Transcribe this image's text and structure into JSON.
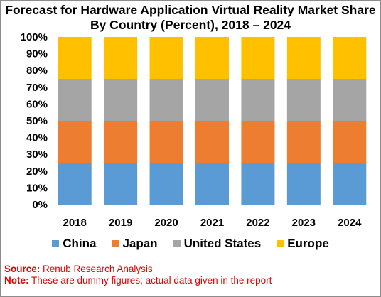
{
  "chart_data": {
    "type": "bar",
    "stacked": true,
    "title_line1": "Forecast for Hardware Application Virtual Reality Market Share",
    "title_line2": "By Country (Percent), 2018 – 2024",
    "categories": [
      "2018",
      "2019",
      "2020",
      "2021",
      "2022",
      "2023",
      "2024"
    ],
    "series": [
      {
        "name": "China",
        "color": "#5b9bd5",
        "values": [
          25,
          25,
          25,
          25,
          25,
          25,
          25
        ]
      },
      {
        "name": "Japan",
        "color": "#ed7d31",
        "values": [
          25,
          25,
          25,
          25,
          25,
          25,
          25
        ]
      },
      {
        "name": "United States",
        "color": "#a5a5a5",
        "values": [
          25,
          25,
          25,
          25,
          25,
          25,
          25
        ]
      },
      {
        "name": "Europe",
        "color": "#ffc000",
        "values": [
          25,
          25,
          25,
          25,
          25,
          25,
          25
        ]
      }
    ],
    "ylim": [
      0,
      100
    ],
    "yticks": [
      "0%",
      "10%",
      "20%",
      "30%",
      "40%",
      "50%",
      "60%",
      "70%",
      "80%",
      "90%",
      "100%"
    ],
    "grid": false,
    "legend_position": "bottom"
  },
  "footer": {
    "source_label": "Source:",
    "source_text": " Renub Research Analysis",
    "note_label": "Note:",
    "note_text": " These are dummy figures; actual data given in the report"
  }
}
